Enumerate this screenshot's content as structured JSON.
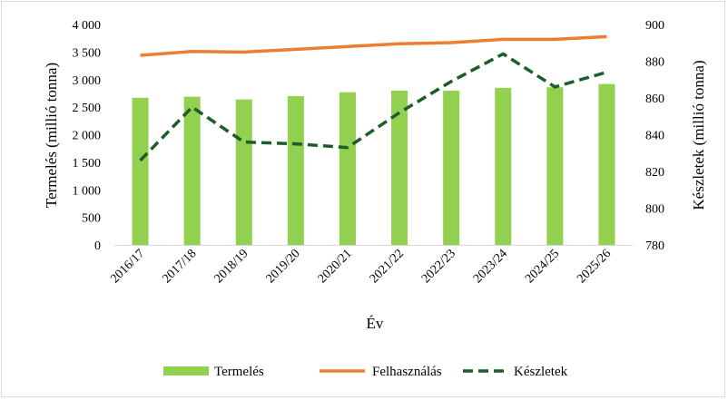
{
  "chart_data": {
    "type": "bar",
    "categories": [
      "2016/17",
      "2017/18",
      "2018/19",
      "2019/20",
      "2020/21",
      "2021/22",
      "2022/23",
      "2023/24",
      "2024/25",
      "2025/26"
    ],
    "xlabel": "Év",
    "ylabel": "Termelés (millió tonna)",
    "y2label": "Készletek (millió tonna)",
    "ylim": [
      0,
      4000
    ],
    "y2lim": [
      780,
      900
    ],
    "yticks": [
      "0",
      "500",
      "1 000",
      "1 500",
      "2 000",
      "2 500",
      "3 000",
      "3 500",
      "4 000"
    ],
    "y2ticks": [
      "780",
      "800",
      "820",
      "840",
      "860",
      "880",
      "900"
    ],
    "grid": false,
    "legend_position": "bottom",
    "series": [
      {
        "name": "Termelés",
        "kind": "bar",
        "axis": "left",
        "color": "#92d050",
        "values": [
          2670,
          2690,
          2640,
          2700,
          2770,
          2800,
          2800,
          2850,
          2860,
          2920
        ]
      },
      {
        "name": "Felhasználás",
        "kind": "line",
        "axis": "left",
        "color": "#ed7d31",
        "values": [
          3440,
          3510,
          3500,
          3550,
          3600,
          3650,
          3670,
          3730,
          3730,
          3780
        ]
      },
      {
        "name": "Készletek",
        "kind": "dashed-line",
        "axis": "right",
        "color": "#1e5c2c",
        "values": [
          826,
          855,
          836,
          835,
          833,
          852,
          869,
          884,
          866,
          874
        ]
      }
    ]
  }
}
